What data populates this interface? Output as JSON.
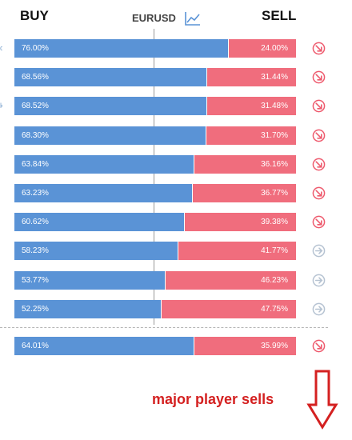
{
  "header": {
    "buy_label": "BUY",
    "sell_label": "SELL",
    "pair": "EURUSD",
    "chart_icon": "line-chart-icon"
  },
  "colors": {
    "buy": "#5a93d6",
    "sell": "#f06d7d",
    "signal_sell": "#ee5b6e",
    "signal_neutral": "#b6c3d2",
    "annotation": "#d42020"
  },
  "rows": [
    {
      "buy": "76.00%",
      "sell": "24.00%",
      "buy_fraction": 0.76,
      "signal": "sell"
    },
    {
      "buy": "68.56%",
      "sell": "31.44%",
      "buy_fraction": 0.6856,
      "signal": "sell"
    },
    {
      "buy": "68.52%",
      "sell": "31.48%",
      "buy_fraction": 0.6852,
      "signal": "sell"
    },
    {
      "buy": "68.30%",
      "sell": "31.70%",
      "buy_fraction": 0.683,
      "signal": "sell"
    },
    {
      "buy": "63.84%",
      "sell": "36.16%",
      "buy_fraction": 0.6384,
      "signal": "sell"
    },
    {
      "buy": "63.23%",
      "sell": "36.77%",
      "buy_fraction": 0.6323,
      "signal": "sell"
    },
    {
      "buy": "60.62%",
      "sell": "39.38%",
      "buy_fraction": 0.6062,
      "signal": "sell"
    },
    {
      "buy": "58.23%",
      "sell": "41.77%",
      "buy_fraction": 0.5823,
      "signal": "neutral"
    },
    {
      "buy": "53.77%",
      "sell": "46.23%",
      "buy_fraction": 0.5377,
      "signal": "neutral"
    },
    {
      "buy": "52.25%",
      "sell": "47.75%",
      "buy_fraction": 0.5225,
      "signal": "neutral"
    }
  ],
  "summary": {
    "buy": "64.01%",
    "sell": "35.99%",
    "buy_fraction": 0.6401,
    "signal": "sell"
  },
  "annotation": {
    "text": "major player sells",
    "icon": "down-arrow-icon"
  }
}
